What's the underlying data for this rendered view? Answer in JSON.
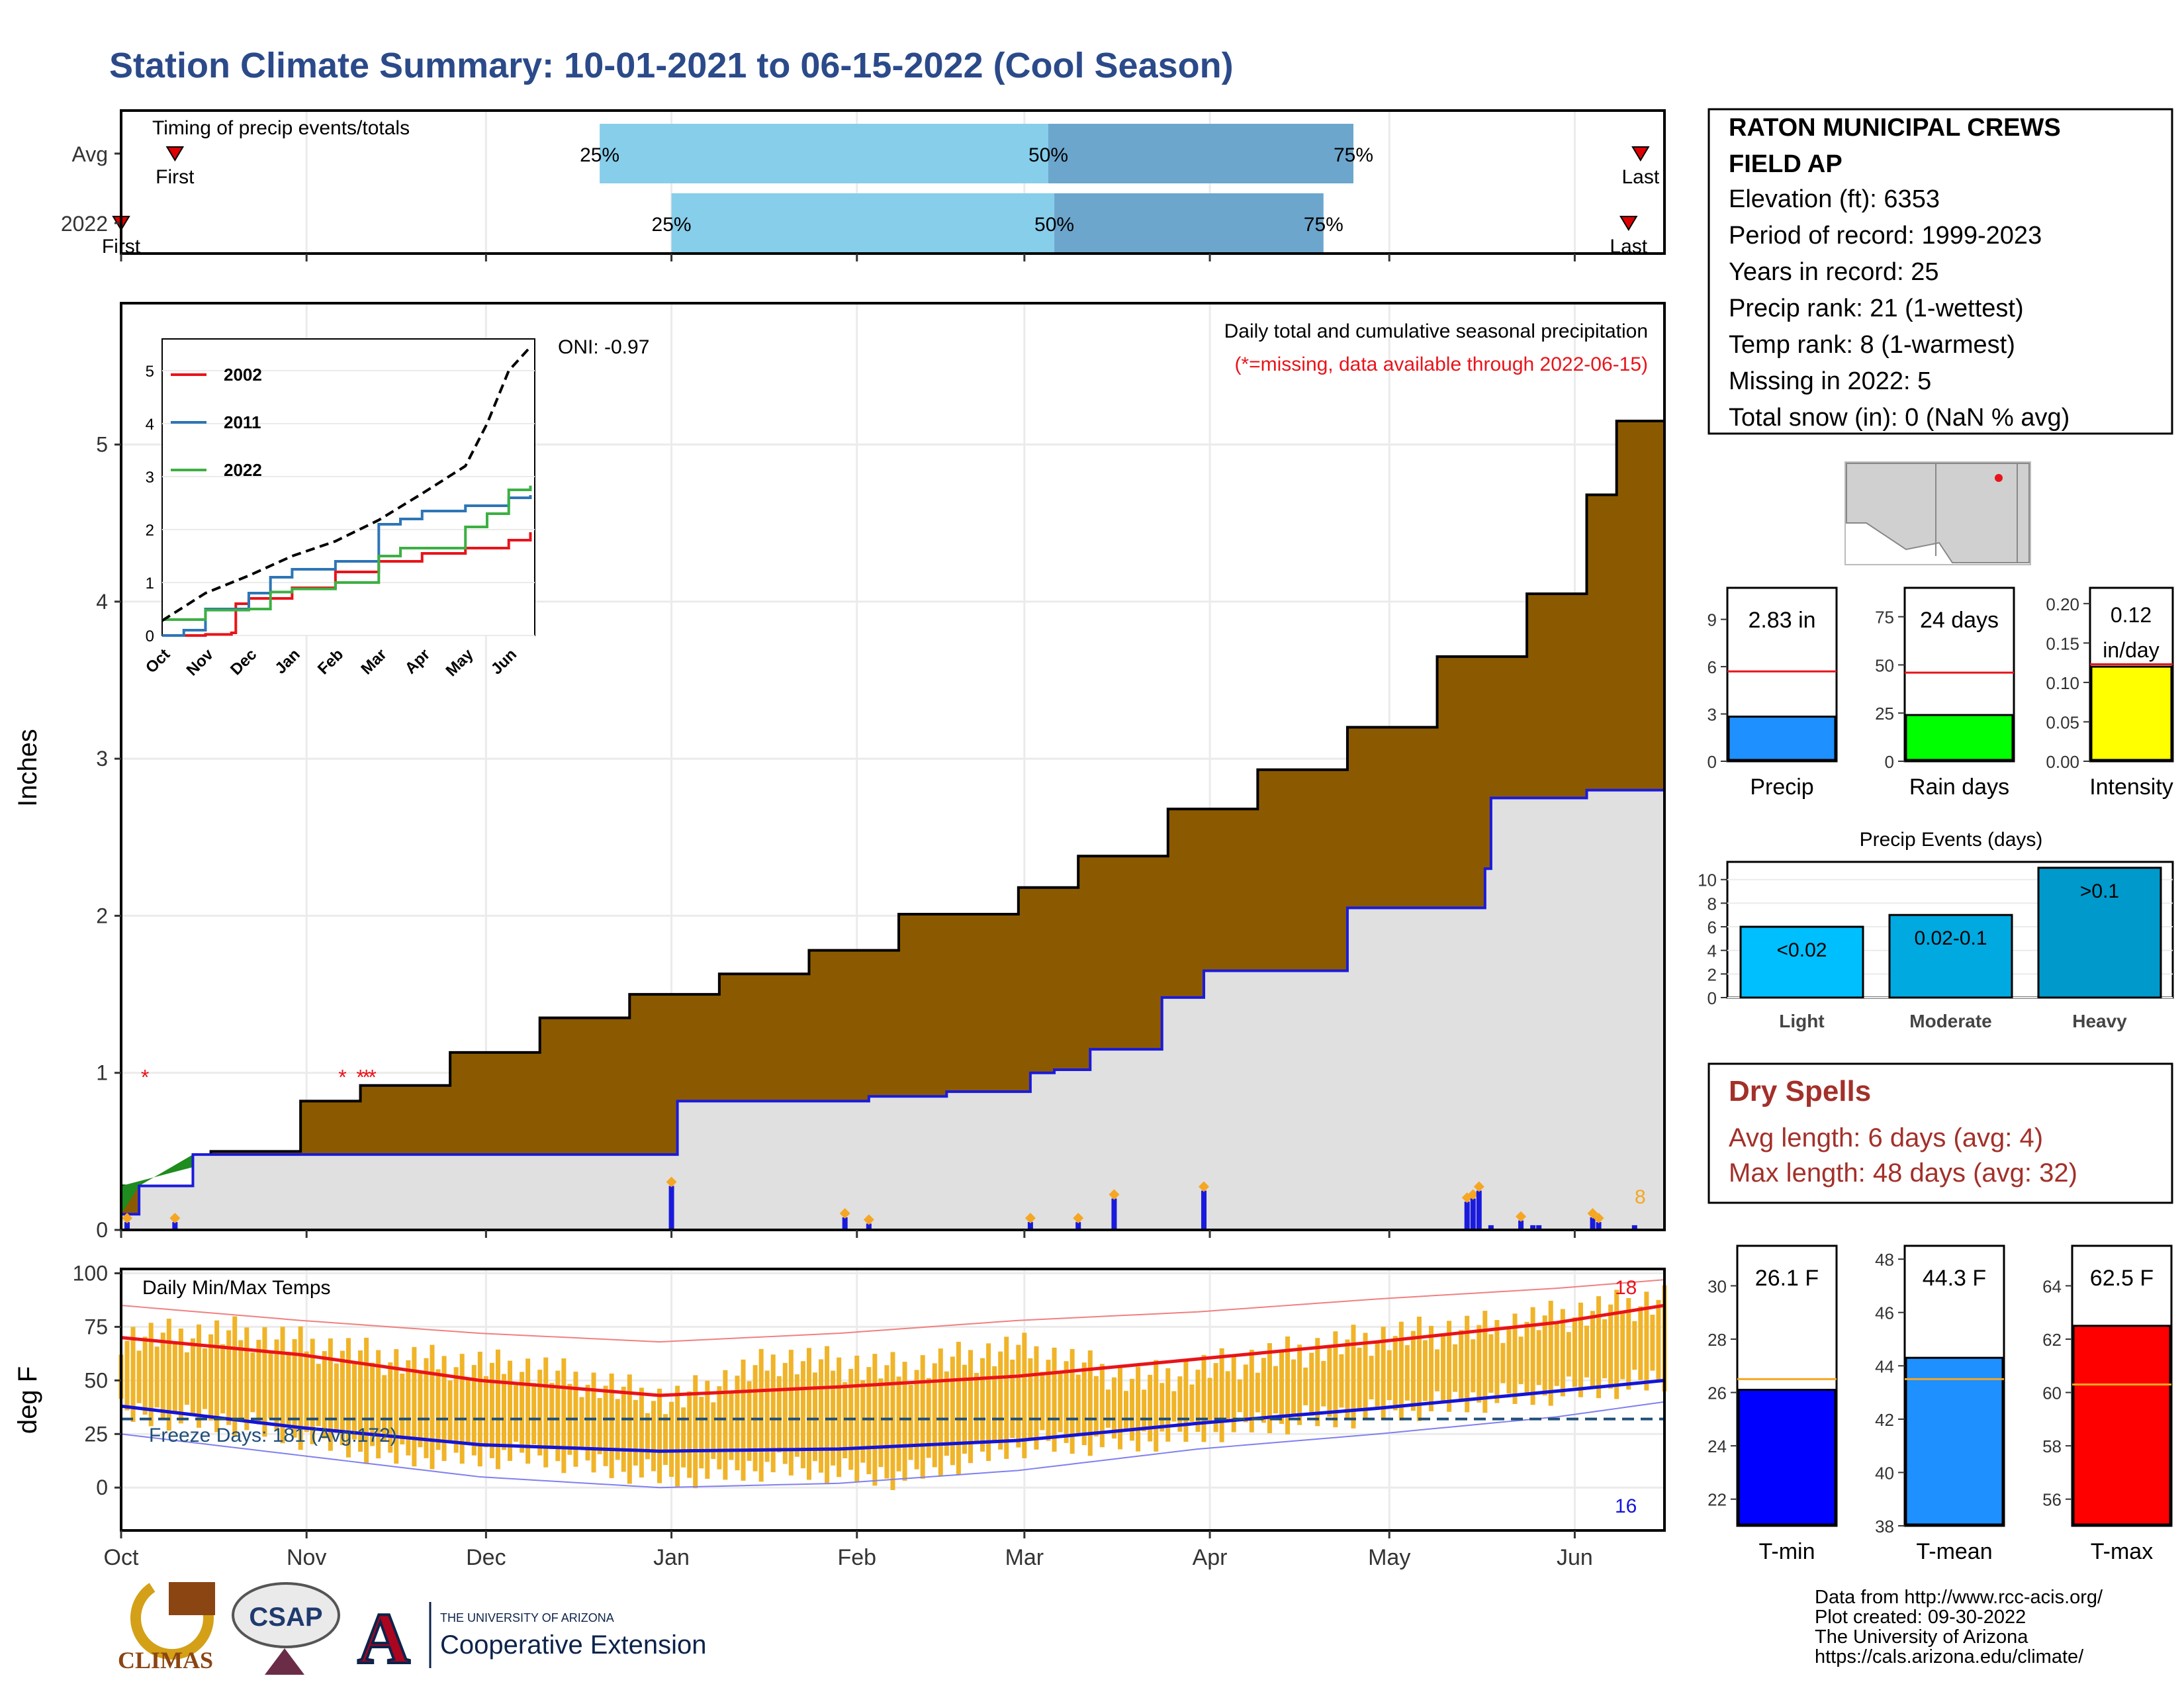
{
  "title": "Station Climate Summary: 10-01-2021 to 06-15-2022 (Cool Season)",
  "station": {
    "name_line1": "RATON MUNICIPAL CREWS",
    "name_line2": "FIELD AP",
    "lines": [
      "Elevation (ft): 6353",
      "Period of record: 1999-2023",
      "Years in record: 25",
      "Precip rank: 21 (1-wettest)",
      "Temp rank: 8 (1-warmest)",
      "Missing in 2022: 5",
      "Total snow (in): 0 (NaN % avg)"
    ]
  },
  "dry_spells": {
    "heading": "Dry Spells",
    "avg_length": "Avg length: 6 days (avg: 4)",
    "max_length": "Max length: 48 days (avg: 32)"
  },
  "credits": [
    "Data from http://www.rcc-acis.org/",
    "Plot created: 09-30-2022",
    "The University of Arizona",
    "https://cals.arizona.edu/climate/"
  ],
  "logos": {
    "climas": "CLIMAS",
    "csap": "CSAP",
    "ua_line1": "THE UNIVERSITY OF ARIZONA",
    "ua_line2": "Cooperative Extension"
  },
  "colors": {
    "cumulative_avg_fill": "#8b5a00",
    "observed_fill": "#e0e0e0",
    "observed_line": "#1a1adc",
    "surplus_fill": "#1e8c1e",
    "daily_bar": "#1a1adc",
    "temp_bar": "#f0b429",
    "tmax_line": "#e8141a",
    "tmin_line": "#1414d8",
    "timing_light": "#87ceeb",
    "timing_dark": "#6ca6cd"
  },
  "chart_data": [
    {
      "id": "timing",
      "type": "bar",
      "title": "Timing of precip events/totals",
      "rows": [
        {
          "label": "Avg",
          "first": "Oct 10",
          "p25": "Dec 20",
          "p50": "Mar 5",
          "p75": "Apr 25",
          "last": "Jun 12",
          "first_label": "First",
          "last_label": "Last"
        },
        {
          "label": "2022",
          "first": "Oct 1",
          "p25": "Jan 1",
          "p50": "Mar 6",
          "p75": "Apr 20",
          "last": "Jun 10",
          "first_label": "First",
          "last_label": "Last"
        }
      ],
      "pct_labels": [
        "25%",
        "50%",
        "75%"
      ]
    },
    {
      "id": "cumulative_precip",
      "type": "area",
      "ylabel": "Inches",
      "ylim": [
        0,
        5.9
      ],
      "yticks": [
        0,
        1,
        2,
        3,
        4,
        5
      ],
      "xticks": [
        "Oct",
        "Nov",
        "Dec",
        "Jan",
        "Feb",
        "Mar",
        "Apr",
        "May",
        "Jun"
      ],
      "annotation_title": "Daily total and cumulative seasonal precipitation",
      "annotation_missing": "(*=missing, data available through 2022-06-15)",
      "oni": "ONI: -0.97",
      "count_label": "8",
      "missing_marker": "*",
      "average_cumulative": {
        "days": [
          0,
          15,
          30,
          40,
          55,
          70,
          85,
          100,
          115,
          130,
          150,
          160,
          175,
          190,
          205,
          220,
          235,
          245,
          250,
          258
        ],
        "values": [
          0.28,
          0.5,
          0.82,
          0.92,
          1.13,
          1.35,
          1.5,
          1.63,
          1.78,
          2.01,
          2.18,
          2.38,
          2.68,
          2.93,
          3.2,
          3.65,
          4.05,
          4.68,
          5.15,
          5.45
        ]
      },
      "observed_cumulative": {
        "days": [
          0,
          3,
          12,
          27,
          92,
          93,
          125,
          138,
          152,
          156,
          162,
          174,
          181,
          190,
          205,
          228,
          229,
          245,
          258
        ],
        "values": [
          0.1,
          0.28,
          0.48,
          0.48,
          0.48,
          0.82,
          0.85,
          0.88,
          1.0,
          1.02,
          1.15,
          1.48,
          1.65,
          1.65,
          2.05,
          2.3,
          2.75,
          2.8,
          2.83
        ]
      },
      "daily_bars": {
        "days": [
          1,
          9,
          92,
          121,
          125,
          152,
          160,
          166,
          181,
          225,
          226,
          227,
          229,
          234,
          236,
          237,
          246,
          247,
          253
        ],
        "values": [
          0.05,
          0.05,
          0.28,
          0.08,
          0.04,
          0.05,
          0.05,
          0.2,
          0.25,
          0.18,
          0.2,
          0.25,
          0.03,
          0.06,
          0.03,
          0.03,
          0.08,
          0.05,
          0.03
        ]
      },
      "missing_days": [
        4,
        37,
        40,
        41,
        42
      ]
    },
    {
      "id": "inset_cumulative",
      "type": "line",
      "ylim": [
        0,
        5.6
      ],
      "yticks": [
        0,
        1,
        2,
        3,
        4,
        5
      ],
      "xticks": [
        "Oct",
        "Nov",
        "Dec",
        "Jan",
        "Feb",
        "Mar",
        "Apr",
        "May",
        "Jun"
      ],
      "series": [
        {
          "name": "2002",
          "color": "#e8141a",
          "x": [
            0,
            1,
            1.6,
            1.7,
            2,
            3,
            4,
            5,
            6,
            7,
            8,
            8.5
          ],
          "values": [
            0,
            0.02,
            0.05,
            0.6,
            0.7,
            0.9,
            1.2,
            1.4,
            1.55,
            1.65,
            1.8,
            1.95
          ]
        },
        {
          "name": "2011",
          "color": "#2e75b6",
          "x": [
            0,
            0.5,
            1,
            2,
            2.5,
            3,
            4,
            5,
            5.5,
            6,
            7,
            8,
            8.5
          ],
          "values": [
            0,
            0.1,
            0.5,
            0.8,
            1.1,
            1.25,
            1.4,
            2.1,
            2.2,
            2.35,
            2.45,
            2.6,
            2.65
          ]
        },
        {
          "name": "2022",
          "color": "#3cb043",
          "x": [
            0,
            1,
            1.5,
            2,
            2.5,
            3,
            4,
            5,
            5.5,
            6,
            7,
            7.5,
            8,
            8.5
          ],
          "values": [
            0.3,
            0.48,
            0.48,
            0.5,
            0.82,
            0.88,
            1.0,
            1.5,
            1.65,
            1.65,
            2.05,
            2.3,
            2.75,
            2.83
          ]
        },
        {
          "name": "avg",
          "color": "#000000",
          "x": [
            0,
            1,
            2,
            3,
            4,
            5,
            6,
            7,
            7.5,
            8,
            8.5
          ],
          "values": [
            0.28,
            0.8,
            1.13,
            1.5,
            1.78,
            2.18,
            2.68,
            3.2,
            4.0,
            5.0,
            5.45
          ]
        }
      ]
    },
    {
      "id": "temps",
      "type": "bar",
      "ylabel": "deg F",
      "ylim": [
        -20,
        102
      ],
      "yticks": [
        0,
        25,
        50,
        75,
        100
      ],
      "xticks": [
        "Oct",
        "Nov",
        "Dec",
        "Jan",
        "Feb",
        "Mar",
        "Apr",
        "May",
        "Jun"
      ],
      "title": "Daily Min/Max Temps",
      "freeze_label": "Freeze Days: 181 (Avg:172)",
      "freeze_line": 32,
      "count_hot": "18",
      "count_cold": "16",
      "avg_tmax": {
        "days": [
          0,
          30,
          60,
          90,
          120,
          150,
          180,
          210,
          240,
          258
        ],
        "values": [
          70,
          62,
          50,
          43,
          47,
          52,
          60,
          68,
          77,
          85
        ]
      },
      "avg_tmin": {
        "days": [
          0,
          30,
          60,
          90,
          120,
          150,
          180,
          210,
          240,
          258
        ],
        "values": [
          38,
          28,
          20,
          17,
          18,
          22,
          30,
          37,
          45,
          50
        ]
      },
      "daily_max_ref": {
        "days": [
          0,
          30,
          60,
          90,
          120,
          150,
          180,
          210,
          240,
          258
        ],
        "values": [
          85,
          78,
          72,
          68,
          72,
          78,
          82,
          88,
          93,
          97
        ]
      },
      "daily_min_ref": {
        "days": [
          0,
          30,
          60,
          90,
          120,
          150,
          180,
          210,
          240,
          258
        ],
        "values": [
          25,
          15,
          5,
          0,
          2,
          8,
          18,
          25,
          33,
          40
        ]
      },
      "obs_tmax": {
        "days": [
          0,
          20,
          45,
          70,
          92,
          110,
          130,
          150,
          170,
          190,
          210,
          230,
          258
        ],
        "values": [
          70,
          72,
          60,
          55,
          40,
          60,
          55,
          65,
          50,
          60,
          70,
          75,
          88
        ]
      },
      "obs_tmin": {
        "days": [
          0,
          20,
          45,
          70,
          92,
          110,
          130,
          150,
          170,
          190,
          210,
          230,
          258
        ],
        "values": [
          35,
          30,
          15,
          15,
          5,
          10,
          5,
          20,
          22,
          30,
          35,
          42,
          50
        ]
      }
    },
    {
      "id": "season_precip",
      "type": "bar",
      "categories": [
        "Precip"
      ],
      "values": [
        2.83
      ],
      "avg": 5.7,
      "ylim": [
        0,
        11
      ],
      "yticks": [
        0,
        3,
        6,
        9
      ],
      "label": "2.83 in",
      "color": "#1e90ff"
    },
    {
      "id": "rain_days",
      "type": "bar",
      "categories": [
        "Rain days"
      ],
      "values": [
        24
      ],
      "avg": 46,
      "ylim": [
        0,
        90
      ],
      "yticks": [
        0,
        25,
        50,
        75
      ],
      "label": "24 days",
      "color": "#00ff00"
    },
    {
      "id": "intensity",
      "type": "bar",
      "categories": [
        "Intensity"
      ],
      "values": [
        0.12
      ],
      "avg": 0.123,
      "ylim": [
        0,
        0.22
      ],
      "yticks": [
        "0.00",
        "0.05",
        "0.10",
        "0.15",
        "0.20"
      ],
      "label_line1": "0.12",
      "label_line2": "in/day",
      "color": "#ffff00"
    },
    {
      "id": "precip_events",
      "type": "bar",
      "title": "Precip Events (days)",
      "categories": [
        "Light",
        "Moderate",
        "Heavy"
      ],
      "values": [
        6,
        7,
        11
      ],
      "bar_labels": [
        "<0.02",
        "0.02-0.1",
        ">0.1"
      ],
      "ylim": [
        0,
        11.5
      ],
      "yticks": [
        0,
        2,
        4,
        6,
        8,
        10
      ],
      "colors": [
        "#00bfff",
        "#00a9e0",
        "#0099cc"
      ]
    },
    {
      "id": "tmin",
      "type": "bar",
      "categories": [
        "T-min"
      ],
      "values": [
        26.1
      ],
      "avg": 26.5,
      "ylim": [
        21,
        31.5
      ],
      "yticks": [
        22,
        24,
        26,
        28,
        30
      ],
      "label": "26.1 F",
      "color": "#0000ff"
    },
    {
      "id": "tmean",
      "type": "bar",
      "categories": [
        "T-mean"
      ],
      "values": [
        44.3
      ],
      "avg": 43.5,
      "ylim": [
        38,
        48.5
      ],
      "yticks": [
        38,
        40,
        42,
        44,
        46,
        48
      ],
      "label": "44.3 F",
      "color": "#1e90ff"
    },
    {
      "id": "tmax",
      "type": "bar",
      "categories": [
        "T-max"
      ],
      "values": [
        62.5
      ],
      "avg": 60.3,
      "ylim": [
        55,
        65.5
      ],
      "yticks": [
        56,
        58,
        60,
        62,
        64
      ],
      "label": "62.5 F",
      "color": "#ff0000"
    }
  ]
}
